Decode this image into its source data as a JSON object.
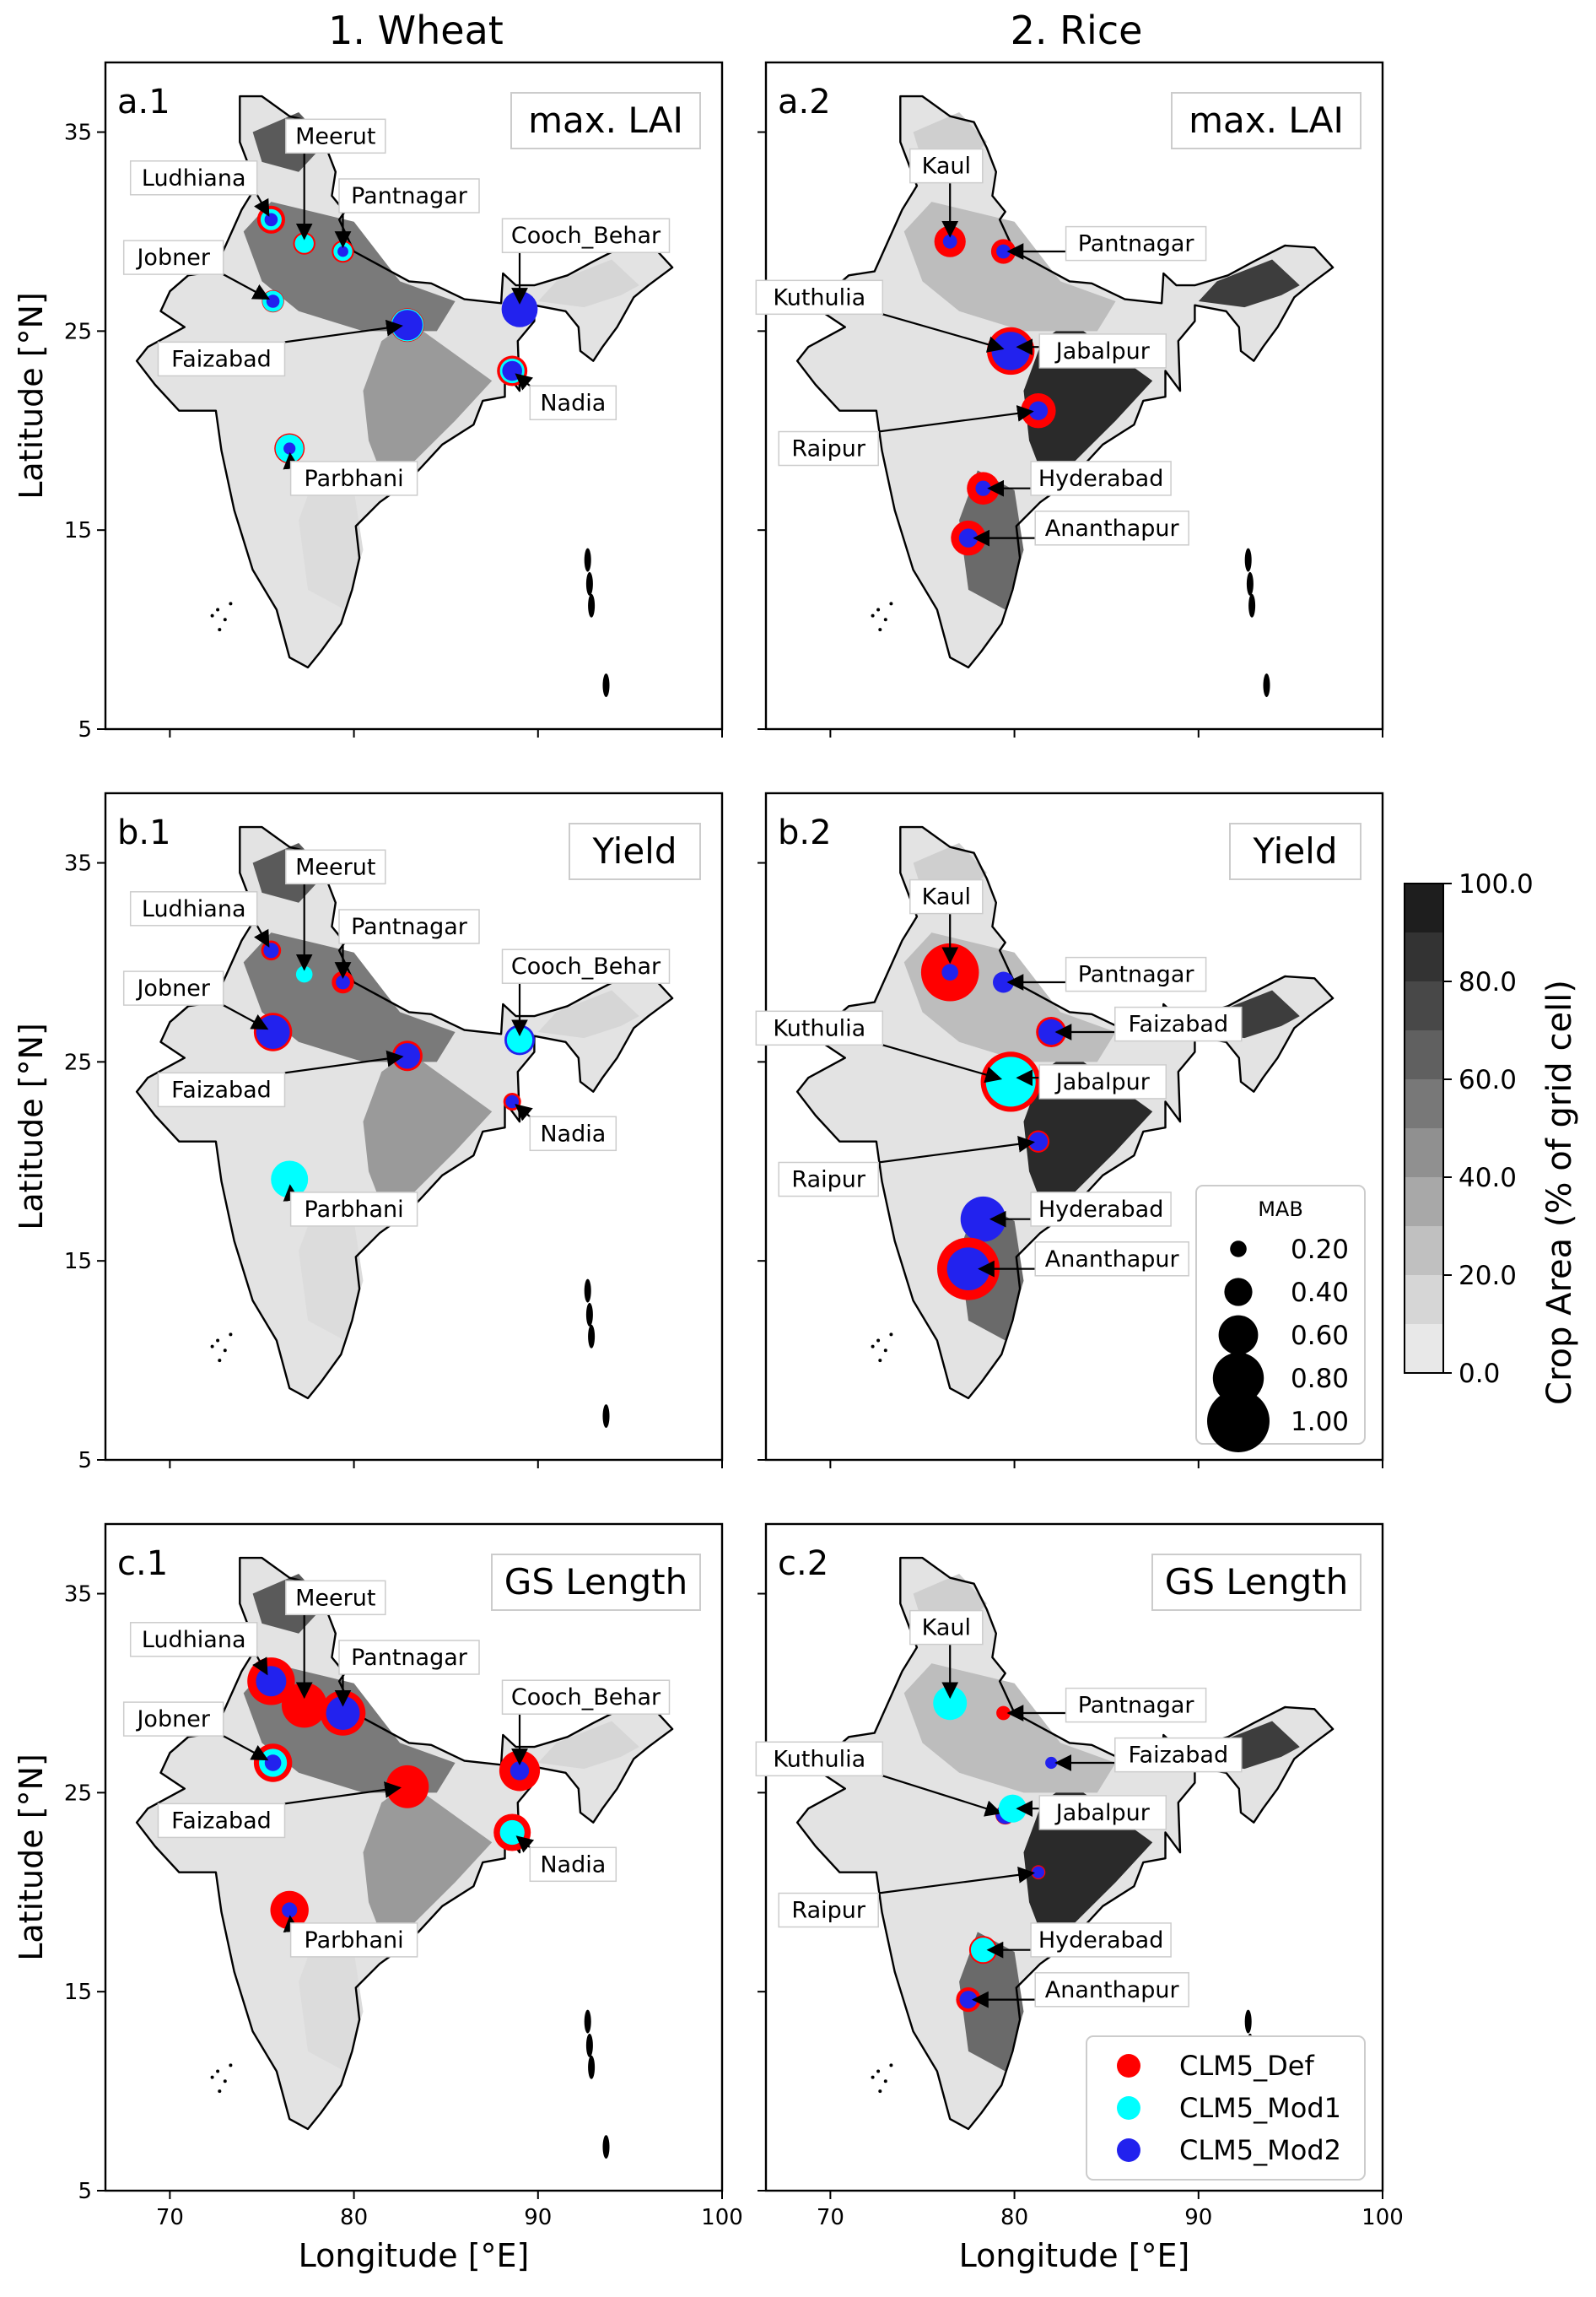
{
  "figure": {
    "column_titles": [
      "1. Wheat",
      "2. Rice"
    ],
    "xlabel": "Longitude [°E]",
    "ylabel": "Latitude [°N]",
    "x_ticks": [
      "70",
      "80",
      "90",
      "100"
    ],
    "y_ticks": [
      "35",
      "25",
      "15",
      "5"
    ]
  },
  "colorbar": {
    "label": "Crop Area (% of grid cell)",
    "ticks": [
      "100.0",
      "80.0",
      "60.0",
      "40.0",
      "20.0",
      "0.0"
    ]
  },
  "size_legend": {
    "title": "MAB",
    "entries": [
      "0.20",
      "0.40",
      "0.60",
      "0.80",
      "1.00"
    ]
  },
  "color_legend": {
    "entries": [
      {
        "label": "CLM5_Def",
        "color": "#ff0000"
      },
      {
        "label": "CLM5_Mod1",
        "color": "#00ffff"
      },
      {
        "label": "CLM5_Mod2",
        "color": "#2222ee"
      }
    ]
  },
  "chart_data": [
    {
      "type": "scatter",
      "id": "a.1",
      "box_label": "max. LAI",
      "crop": "Wheat",
      "xlim": [
        66.5,
        100
      ],
      "ylim": [
        5,
        38.5
      ],
      "sites": [
        {
          "name": "Ludhiana",
          "lon": 75.5,
          "lat": 30.6,
          "label_lon": 71.3,
          "label_lat": 32.7,
          "mab": [
            0.4,
            0.28,
            0.14
          ]
        },
        {
          "name": "Meerut",
          "lon": 77.3,
          "lat": 29.4,
          "label_lon": 79.0,
          "label_lat": 34.8,
          "mab": [
            0.3,
            0.24,
            0.0
          ]
        },
        {
          "name": "Pantnagar",
          "lon": 79.4,
          "lat": 29.0,
          "label_lon": 83.0,
          "label_lat": 31.8,
          "mab": [
            0.3,
            0.24,
            0.1
          ]
        },
        {
          "name": "Jobner",
          "lon": 75.6,
          "lat": 26.5,
          "label_lon": 70.2,
          "label_lat": 28.7,
          "mab": [
            0.3,
            0.28,
            0.14
          ]
        },
        {
          "name": "Cooch_Behar",
          "lon": 89.0,
          "lat": 26.1,
          "label_lon": 92.6,
          "label_lat": 29.8,
          "mab": [
            0.0,
            0.0,
            0.54
          ]
        },
        {
          "name": "Faizabad",
          "lon": 82.9,
          "lat": 25.3,
          "label_lon": 72.8,
          "label_lat": 23.6,
          "mab": [
            0.5,
            0.48,
            0.44
          ]
        },
        {
          "name": "Nadia",
          "lon": 88.6,
          "lat": 23.0,
          "label_lon": 91.9,
          "label_lat": 21.4,
          "mab": [
            0.44,
            0.34,
            0.26
          ]
        },
        {
          "name": "Parbhani",
          "lon": 76.5,
          "lat": 19.1,
          "label_lon": 80.0,
          "label_lat": 17.6,
          "mab": [
            0.44,
            0.4,
            0.12
          ]
        }
      ]
    },
    {
      "type": "scatter",
      "id": "a.2",
      "box_label": "max. LAI",
      "crop": "Rice",
      "xlim": [
        66.5,
        100
      ],
      "ylim": [
        5,
        38.5
      ],
      "sites": [
        {
          "name": "Kaul",
          "lon": 76.5,
          "lat": 29.5,
          "label_lon": 76.3,
          "label_lat": 33.3,
          "mab": [
            0.46,
            0.0,
            0.16
          ]
        },
        {
          "name": "Pantnagar",
          "lon": 79.4,
          "lat": 29.0,
          "label_lon": 86.6,
          "label_lat": 29.4,
          "mab": [
            0.34,
            0.0,
            0.16
          ]
        },
        {
          "name": "Kuthulia",
          "lon": 79.8,
          "lat": 24.0,
          "label_lon": 69.4,
          "label_lat": 26.7,
          "mab": [
            0.74,
            0.0,
            0.58
          ]
        },
        {
          "name": "Jabalpur",
          "lon": 79.9,
          "lat": 24.2,
          "label_lon": 84.8,
          "label_lat": 24.0,
          "mab": [
            0.0,
            0.0,
            0.0
          ]
        },
        {
          "name": "Raipur",
          "lon": 81.3,
          "lat": 21.0,
          "label_lon": 69.9,
          "label_lat": 19.1,
          "mab": [
            0.52,
            0.0,
            0.24
          ]
        },
        {
          "name": "Hyderabad",
          "lon": 78.3,
          "lat": 17.1,
          "label_lon": 84.7,
          "label_lat": 17.6,
          "mab": [
            0.48,
            0.0,
            0.18
          ]
        },
        {
          "name": "Ananthapur",
          "lon": 77.5,
          "lat": 14.6,
          "label_lon": 85.3,
          "label_lat": 15.1,
          "mab": [
            0.52,
            0.0,
            0.24
          ]
        }
      ]
    },
    {
      "type": "scatter",
      "id": "b.1",
      "box_label": "Yield",
      "crop": "Wheat",
      "xlim": [
        66.5,
        100
      ],
      "ylim": [
        5,
        38.5
      ],
      "sites": [
        {
          "name": "Ludhiana",
          "lon": 75.5,
          "lat": 30.6,
          "label_lon": 71.3,
          "label_lat": 32.7,
          "mab": [
            0.26,
            0.0,
            0.18
          ]
        },
        {
          "name": "Meerut",
          "lon": 77.3,
          "lat": 29.4,
          "label_lon": 79.0,
          "label_lat": 34.8,
          "mab": [
            0.0,
            0.2,
            0.0
          ]
        },
        {
          "name": "Pantnagar",
          "lon": 79.4,
          "lat": 29.0,
          "label_lon": 83.0,
          "label_lat": 31.8,
          "mab": [
            0.3,
            0.0,
            0.16
          ]
        },
        {
          "name": "Jobner",
          "lon": 75.6,
          "lat": 26.5,
          "label_lon": 70.2,
          "label_lat": 28.7,
          "mab": [
            0.58,
            0.0,
            0.5
          ]
        },
        {
          "name": "Cooch_Behar",
          "lon": 89.0,
          "lat": 26.1,
          "label_lon": 92.6,
          "label_lat": 29.8,
          "mab": [
            0.0,
            0.36,
            0.44
          ]
        },
        {
          "name": "Faizabad",
          "lon": 82.9,
          "lat": 25.3,
          "label_lon": 72.8,
          "label_lat": 23.6,
          "mab": [
            0.44,
            0.0,
            0.36
          ]
        },
        {
          "name": "Nadia",
          "lon": 88.6,
          "lat": 23.0,
          "label_lon": 91.9,
          "label_lat": 21.4,
          "mab": [
            0.22,
            0.0,
            0.14
          ]
        },
        {
          "name": "Parbhani",
          "lon": 76.5,
          "lat": 19.1,
          "label_lon": 80.0,
          "label_lat": 17.6,
          "mab": [
            0.0,
            0.56,
            0.0
          ]
        }
      ]
    },
    {
      "type": "scatter",
      "id": "b.2",
      "box_label": "Yield",
      "crop": "Rice",
      "xlim": [
        66.5,
        100
      ],
      "ylim": [
        5,
        38.5
      ],
      "sites": [
        {
          "name": "Kaul",
          "lon": 76.5,
          "lat": 29.5,
          "label_lon": 76.3,
          "label_lat": 33.3,
          "mab": [
            0.92,
            0.0,
            0.2
          ]
        },
        {
          "name": "Pantnagar",
          "lon": 79.4,
          "lat": 29.0,
          "label_lon": 86.6,
          "label_lat": 29.4,
          "mab": [
            0.0,
            0.0,
            0.28
          ]
        },
        {
          "name": "Faizabad",
          "lon": 82.0,
          "lat": 26.5,
          "label_lon": 88.9,
          "label_lat": 26.9,
          "mab": [
            0.44,
            0.0,
            0.36
          ]
        },
        {
          "name": "Kuthulia",
          "lon": 79.8,
          "lat": 24.0,
          "label_lon": 69.4,
          "label_lat": 26.7,
          "mab": [
            0.96,
            0.78,
            0.0
          ]
        },
        {
          "name": "Jabalpur",
          "lon": 79.9,
          "lat": 24.2,
          "label_lon": 84.8,
          "label_lat": 24.0,
          "mab": [
            0.0,
            0.0,
            0.0
          ]
        },
        {
          "name": "Raipur",
          "lon": 81.3,
          "lat": 21.0,
          "label_lon": 69.9,
          "label_lat": 19.1,
          "mab": [
            0.3,
            0.0,
            0.24
          ]
        },
        {
          "name": "Hyderabad",
          "lon": 78.3,
          "lat": 17.1,
          "label_lon": 84.7,
          "label_lat": 17.6,
          "mab": [
            0.0,
            0.0,
            0.7
          ]
        },
        {
          "name": "Ananthapur",
          "lon": 77.5,
          "lat": 14.6,
          "label_lon": 85.3,
          "label_lat": 15.1,
          "mab": [
            1.0,
            0.0,
            0.66
          ]
        }
      ]
    },
    {
      "type": "scatter",
      "id": "c.1",
      "box_label": "GS Length",
      "crop": "Wheat",
      "xlim": [
        66.5,
        100
      ],
      "ylim": [
        5,
        38.5
      ],
      "sites": [
        {
          "name": "Ludhiana",
          "lon": 75.5,
          "lat": 30.6,
          "label_lon": 71.3,
          "label_lat": 32.7,
          "mab": [
            0.74,
            0.0,
            0.44
          ]
        },
        {
          "name": "Meerut",
          "lon": 77.3,
          "lat": 29.4,
          "label_lon": 79.0,
          "label_lat": 34.8,
          "mab": [
            0.7,
            0.0,
            0.0
          ]
        },
        {
          "name": "Pantnagar",
          "lon": 79.4,
          "lat": 29.0,
          "label_lon": 83.0,
          "label_lat": 31.8,
          "mab": [
            0.7,
            0.0,
            0.5
          ]
        },
        {
          "name": "Jobner",
          "lon": 75.6,
          "lat": 26.5,
          "label_lon": 70.2,
          "label_lat": 28.7,
          "mab": [
            0.58,
            0.4,
            0.2
          ]
        },
        {
          "name": "Cooch_Behar",
          "lon": 89.0,
          "lat": 26.1,
          "label_lon": 92.6,
          "label_lat": 29.8,
          "mab": [
            0.62,
            0.0,
            0.24
          ]
        },
        {
          "name": "Faizabad",
          "lon": 82.9,
          "lat": 25.3,
          "label_lon": 72.8,
          "label_lat": 23.6,
          "mab": [
            0.66,
            0.0,
            0.0
          ]
        },
        {
          "name": "Nadia",
          "lon": 88.6,
          "lat": 23.0,
          "label_lon": 91.9,
          "label_lat": 21.4,
          "mab": [
            0.56,
            0.34,
            0.0
          ]
        },
        {
          "name": "Parbhani",
          "lon": 76.5,
          "lat": 19.1,
          "label_lon": 80.0,
          "label_lat": 17.6,
          "mab": [
            0.58,
            0.0,
            0.18
          ]
        }
      ]
    },
    {
      "type": "scatter",
      "id": "c.2",
      "box_label": "GS Length",
      "crop": "Rice",
      "xlim": [
        66.5,
        100
      ],
      "ylim": [
        5,
        38.5
      ],
      "sites": [
        {
          "name": "Kaul",
          "lon": 76.5,
          "lat": 29.5,
          "label_lon": 76.3,
          "label_lat": 33.3,
          "mab": [
            0.0,
            0.5,
            0.0
          ]
        },
        {
          "name": "Pantnagar",
          "lon": 79.4,
          "lat": 29.0,
          "label_lon": 86.6,
          "label_lat": 29.4,
          "mab": [
            0.16,
            0.0,
            0.0
          ]
        },
        {
          "name": "Faizabad",
          "lon": 82.0,
          "lat": 26.5,
          "label_lon": 88.9,
          "label_lat": 26.9,
          "mab": [
            0.0,
            0.0,
            0.12
          ]
        },
        {
          "name": "Kuthulia",
          "lon": 79.5,
          "lat": 23.9,
          "label_lon": 69.4,
          "label_lat": 26.7,
          "mab": [
            0.26,
            0.0,
            0.24
          ]
        },
        {
          "name": "Jabalpur",
          "lon": 79.9,
          "lat": 24.2,
          "label_lon": 84.8,
          "label_lat": 24.0,
          "mab": [
            0.0,
            0.4,
            0.0
          ]
        },
        {
          "name": "Raipur",
          "lon": 81.3,
          "lat": 21.0,
          "label_lon": 69.9,
          "label_lat": 19.1,
          "mab": [
            0.16,
            0.0,
            0.12
          ]
        },
        {
          "name": "Hyderabad",
          "lon": 78.3,
          "lat": 17.1,
          "label_lon": 84.7,
          "label_lat": 17.6,
          "mab": [
            0.4,
            0.34,
            0.0
          ]
        },
        {
          "name": "Ananthapur",
          "lon": 77.5,
          "lat": 14.6,
          "label_lon": 85.3,
          "label_lat": 15.1,
          "mab": [
            0.34,
            0.0,
            0.22
          ]
        }
      ]
    }
  ]
}
